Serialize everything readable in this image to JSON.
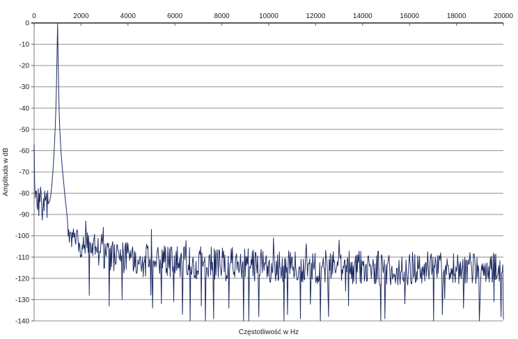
{
  "page": {
    "background": "#ffffff",
    "description": "FFT amplitude spectrum plot, axis labels in Polish"
  },
  "chart_data": {
    "type": "line",
    "title": "",
    "xlabel": "Częstotliwość w Hz",
    "ylabel": "Amplituda w dB",
    "xlim": [
      0,
      20000
    ],
    "ylim": [
      -140,
      0
    ],
    "x_ticks": [
      0,
      2000,
      4000,
      6000,
      8000,
      10000,
      12000,
      14000,
      16000,
      18000,
      20000
    ],
    "y_ticks": [
      0,
      -10,
      -20,
      -30,
      -40,
      -50,
      -60,
      -70,
      -80,
      -90,
      -100,
      -110,
      -120,
      -130,
      -140
    ],
    "grid": "horizontal-only",
    "legend": "none",
    "x_axis_position": "top",
    "colors": {
      "line": "#1f2d64",
      "grid": "#8f8f8f",
      "axis": "#5a5a5a",
      "text": "#1a1a1a",
      "background": "#ffffff"
    },
    "peak": {
      "freq_hz": 1000,
      "amplitude_db": 0
    },
    "noise_floor_db": -115,
    "synthesis": {
      "step_hz": 25,
      "seed": 7,
      "start_value_db": -57,
      "center_envelope": [
        [
          0,
          -57
        ],
        [
          25,
          -78
        ],
        [
          60,
          -83
        ],
        [
          120,
          -84
        ],
        [
          400,
          -86
        ],
        [
          600,
          -85
        ]
      ],
      "peak_breakpoints": [
        [
          600,
          -85
        ],
        [
          650,
          -84
        ],
        [
          700,
          -82
        ],
        [
          750,
          -77
        ],
        [
          800,
          -70
        ],
        [
          850,
          -61
        ],
        [
          890,
          -52
        ],
        [
          920,
          -43
        ],
        [
          945,
          -33
        ],
        [
          965,
          -22
        ],
        [
          980,
          -12
        ],
        [
          1000,
          0
        ],
        [
          1012,
          -8
        ],
        [
          1025,
          -18
        ],
        [
          1040,
          -28
        ],
        [
          1060,
          -38
        ],
        [
          1080,
          -46
        ],
        [
          1110,
          -54
        ],
        [
          1150,
          -61
        ],
        [
          1200,
          -68
        ],
        [
          1260,
          -75
        ],
        [
          1320,
          -82
        ],
        [
          1390,
          -89
        ],
        [
          1440,
          -95
        ]
      ],
      "post_envelope": [
        [
          1440,
          -101
        ],
        [
          2000,
          -104
        ],
        [
          2600,
          -107
        ],
        [
          3500,
          -110
        ],
        [
          5000,
          -112
        ],
        [
          7000,
          -113
        ],
        [
          10000,
          -114
        ],
        [
          14000,
          -115
        ],
        [
          20000,
          -116
        ]
      ],
      "spread_envelope": [
        [
          0,
          0
        ],
        [
          40,
          9
        ],
        [
          600,
          8
        ],
        [
          1440,
          5
        ],
        [
          2600,
          8
        ],
        [
          20000,
          8
        ]
      ],
      "down_spike_probability": 0.035,
      "down_spike_max_db": 22,
      "up_spike_probability": 0.012,
      "up_spike_max_db": 7,
      "clip_min_db": -140,
      "clip_max_db": 0,
      "deep_spikes": [
        [
          2350,
          -128
        ],
        [
          3200,
          -133
        ],
        [
          3740,
          -130
        ],
        [
          5040,
          -134
        ],
        [
          5430,
          -132
        ],
        [
          5960,
          -131
        ],
        [
          6650,
          -140
        ],
        [
          7300,
          -140
        ],
        [
          7650,
          -139
        ],
        [
          8300,
          -134
        ],
        [
          9140,
          -140
        ],
        [
          9580,
          -138
        ],
        [
          10650,
          -140
        ],
        [
          10800,
          -137
        ],
        [
          11360,
          -139
        ],
        [
          12200,
          -140
        ],
        [
          12550,
          -138
        ],
        [
          13400,
          -133
        ],
        [
          14770,
          -140
        ],
        [
          14950,
          -139
        ],
        [
          15800,
          -132
        ],
        [
          17030,
          -140
        ],
        [
          17390,
          -137
        ],
        [
          18300,
          -134
        ],
        [
          19000,
          -133
        ],
        [
          19600,
          -131
        ]
      ],
      "up_spikes": [
        [
          2200,
          -93
        ],
        [
          2940,
          -96
        ],
        [
          5000,
          -97
        ],
        [
          10200,
          -101
        ],
        [
          13000,
          -102
        ]
      ]
    }
  }
}
